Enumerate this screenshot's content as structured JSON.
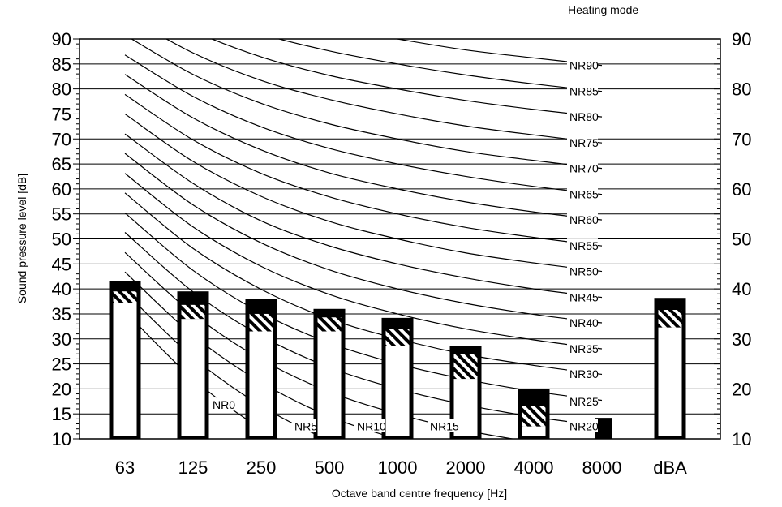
{
  "chart_data": {
    "type": "bar",
    "title": "Heating mode",
    "xlabel": "Octave band centre frequency [Hz]",
    "ylabel": "Sound pressure level [dB]",
    "ylim": [
      10,
      90
    ],
    "yticks": [
      10,
      15,
      20,
      25,
      30,
      35,
      40,
      45,
      50,
      55,
      60,
      65,
      70,
      75,
      80,
      85,
      90
    ],
    "right_yticks": [
      10,
      20,
      30,
      40,
      50,
      60,
      70,
      80,
      90
    ],
    "categories": [
      "63",
      "125",
      "250",
      "500",
      "1000",
      "2000",
      "4000",
      "8000",
      "dBA"
    ],
    "bars": [
      {
        "category": "63",
        "top": 41.5,
        "hatch_top": 39.5,
        "hatch_bottom": 37.2,
        "white_bottom": 10.5
      },
      {
        "category": "125",
        "top": 39.5,
        "hatch_top": 36.8,
        "hatch_bottom": 34.0,
        "white_bottom": 10.5
      },
      {
        "category": "250",
        "top": 38.0,
        "hatch_top": 35.0,
        "hatch_bottom": 31.5,
        "white_bottom": 10.5
      },
      {
        "category": "500",
        "top": 36.0,
        "hatch_top": 34.3,
        "hatch_bottom": 31.5,
        "white_bottom": 10.5
      },
      {
        "category": "1000",
        "top": 34.2,
        "hatch_top": 32.0,
        "hatch_bottom": 28.5,
        "white_bottom": 10.5
      },
      {
        "category": "2000",
        "top": 28.5,
        "hatch_top": 27.0,
        "hatch_bottom": 22.0,
        "white_bottom": 10.5
      },
      {
        "category": "4000",
        "top": 20.0,
        "hatch_top": 16.5,
        "hatch_bottom": 12.5,
        "white_bottom": 10.5
      },
      {
        "category": "8000",
        "top": 14.2,
        "hatch_top": null,
        "hatch_bottom": null,
        "white_bottom": null
      },
      {
        "category": "dBA",
        "top": 38.2,
        "hatch_top": 35.8,
        "hatch_bottom": 32.3,
        "white_bottom": 10.5
      }
    ],
    "nr_curves": [
      {
        "name": "NR0",
        "values": [
          35.5,
          22.0,
          12.0,
          4.8,
          0.0,
          -3.5,
          -6.1,
          -8.0
        ]
      },
      {
        "name": "NR5",
        "values": [
          39.4,
          26.3,
          16.6,
          9.7,
          5.0,
          1.6,
          -1.0,
          -2.8
        ]
      },
      {
        "name": "NR10",
        "values": [
          43.4,
          30.7,
          21.3,
          14.5,
          10.0,
          6.6,
          4.2,
          2.3
        ]
      },
      {
        "name": "NR15",
        "values": [
          47.3,
          35.0,
          25.9,
          19.4,
          15.0,
          11.7,
          9.3,
          7.4
        ]
      },
      {
        "name": "NR20",
        "values": [
          51.3,
          39.4,
          30.6,
          24.3,
          20.0,
          16.8,
          14.4,
          12.6
        ]
      },
      {
        "name": "NR25",
        "values": [
          55.2,
          43.7,
          35.2,
          29.2,
          25.0,
          21.9,
          19.5,
          17.7
        ]
      },
      {
        "name": "NR30",
        "values": [
          59.2,
          48.1,
          39.9,
          34.0,
          30.0,
          26.9,
          24.7,
          22.9
        ]
      },
      {
        "name": "NR35",
        "values": [
          63.1,
          52.4,
          44.5,
          38.9,
          35.0,
          32.0,
          29.8,
          28.0
        ]
      },
      {
        "name": "NR40",
        "values": [
          67.1,
          56.8,
          49.2,
          43.8,
          40.0,
          37.1,
          34.9,
          33.2
        ]
      },
      {
        "name": "NR45",
        "values": [
          71.0,
          61.1,
          53.6,
          48.6,
          45.0,
          42.2,
          40.0,
          38.3
        ]
      },
      {
        "name": "NR50",
        "values": [
          75.0,
          65.5,
          58.5,
          53.5,
          50.0,
          47.2,
          45.2,
          43.5
        ]
      },
      {
        "name": "NR55",
        "values": [
          78.9,
          69.8,
          63.1,
          58.4,
          55.0,
          52.3,
          50.3,
          48.6
        ]
      },
      {
        "name": "NR60",
        "values": [
          82.9,
          74.2,
          67.8,
          63.2,
          60.0,
          57.4,
          55.4,
          53.8
        ]
      },
      {
        "name": "NR65",
        "values": [
          86.8,
          78.5,
          72.4,
          68.1,
          65.0,
          62.5,
          60.5,
          58.9
        ]
      },
      {
        "name": "NR70",
        "values": [
          90.8,
          82.9,
          77.1,
          73.0,
          70.0,
          67.5,
          65.7,
          64.1
        ]
      },
      {
        "name": "NR75",
        "values": [
          94.7,
          87.2,
          81.7,
          77.9,
          75.0,
          72.6,
          70.8,
          69.2
        ]
      },
      {
        "name": "NR80",
        "values": [
          98.6,
          91.6,
          86.4,
          82.7,
          80.0,
          77.7,
          75.9,
          74.4
        ]
      },
      {
        "name": "NR85",
        "values": [
          102.6,
          95.9,
          91.0,
          87.6,
          85.0,
          82.8,
          81.0,
          79.5
        ]
      },
      {
        "name": "NR90",
        "values": [
          106.5,
          100.3,
          95.7,
          92.5,
          90.0,
          87.8,
          86.2,
          84.7
        ]
      }
    ],
    "grid": true,
    "legend": "none"
  }
}
